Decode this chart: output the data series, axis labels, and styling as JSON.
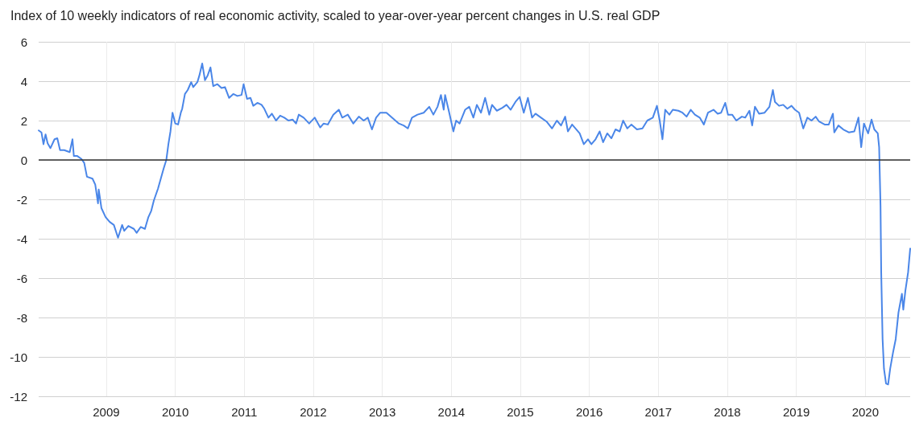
{
  "chart_data": {
    "type": "line",
    "title": "Index of 10 weekly indicators of real economic activity, scaled to year-over-year percent changes in U.S. real GDP",
    "x": [
      2008.02,
      2008.06,
      2008.09,
      2008.12,
      2008.15,
      2008.19,
      2008.25,
      2008.29,
      2008.33,
      2008.39,
      2008.47,
      2008.51,
      2008.53,
      2008.58,
      2008.64,
      2008.68,
      2008.72,
      2008.8,
      2008.84,
      2008.88,
      2008.89,
      2008.93,
      2008.99,
      2009.05,
      2009.11,
      2009.17,
      2009.23,
      2009.26,
      2009.32,
      2009.4,
      2009.44,
      2009.5,
      2009.56,
      2009.61,
      2009.65,
      2009.69,
      2009.75,
      2009.79,
      2009.83,
      2009.87,
      2009.9,
      2009.93,
      2009.96,
      2010.0,
      2010.04,
      2010.08,
      2010.1,
      2010.14,
      2010.18,
      2010.23,
      2010.26,
      2010.32,
      2010.35,
      2010.39,
      2010.43,
      2010.47,
      2010.51,
      2010.55,
      2010.61,
      2010.67,
      2010.72,
      2010.78,
      2010.84,
      2010.9,
      2010.96,
      2010.99,
      2011.04,
      2011.09,
      2011.13,
      2011.19,
      2011.25,
      2011.29,
      2011.35,
      2011.4,
      2011.46,
      2011.52,
      2011.58,
      2011.64,
      2011.7,
      2011.75,
      2011.79,
      2011.86,
      2011.94,
      2012.02,
      2012.1,
      2012.15,
      2012.21,
      2012.29,
      2012.37,
      2012.42,
      2012.5,
      2012.58,
      2012.66,
      2012.73,
      2012.79,
      2012.85,
      2012.91,
      2012.97,
      2013.06,
      2013.14,
      2013.24,
      2013.31,
      2013.37,
      2013.43,
      2013.51,
      2013.6,
      2013.68,
      2013.74,
      2013.8,
      2013.85,
      2013.89,
      2013.91,
      2013.97,
      2014.03,
      2014.07,
      2014.12,
      2014.2,
      2014.26,
      2014.32,
      2014.37,
      2014.43,
      2014.49,
      2014.55,
      2014.59,
      2014.66,
      2014.74,
      2014.8,
      2014.86,
      2014.93,
      2014.99,
      2015.05,
      2015.11,
      2015.17,
      2015.22,
      2015.3,
      2015.38,
      2015.46,
      2015.53,
      2015.59,
      2015.65,
      2015.69,
      2015.75,
      2015.8,
      2015.86,
      2015.92,
      2015.98,
      2016.03,
      2016.09,
      2016.15,
      2016.2,
      2016.26,
      2016.32,
      2016.38,
      2016.44,
      2016.49,
      2016.55,
      2016.61,
      2016.69,
      2016.77,
      2016.84,
      2016.92,
      2016.98,
      2017.02,
      2017.06,
      2017.1,
      2017.16,
      2017.21,
      2017.29,
      2017.35,
      2017.41,
      2017.47,
      2017.53,
      2017.6,
      2017.66,
      2017.72,
      2017.8,
      2017.86,
      2017.91,
      2017.97,
      2018.01,
      2018.07,
      2018.13,
      2018.21,
      2018.26,
      2018.32,
      2018.36,
      2018.4,
      2018.46,
      2018.54,
      2018.61,
      2018.66,
      2018.69,
      2018.75,
      2018.81,
      2018.87,
      2018.93,
      2018.98,
      2019.04,
      2019.1,
      2019.16,
      2019.22,
      2019.28,
      2019.33,
      2019.41,
      2019.47,
      2019.53,
      2019.55,
      2019.61,
      2019.68,
      2019.76,
      2019.84,
      2019.9,
      2019.94,
      2019.98,
      2020.04,
      2020.09,
      2020.13,
      2020.18,
      2020.2,
      2020.22,
      2020.23,
      2020.25,
      2020.27,
      2020.3,
      2020.33,
      2020.36,
      2020.4,
      2020.44,
      2020.48,
      2020.53,
      2020.55,
      2020.58,
      2020.62,
      2020.65
    ],
    "series": [
      {
        "color": "#4a86e8",
        "values": [
          1.5,
          1.4,
          0.8,
          1.3,
          0.85,
          0.6,
          1.05,
          1.1,
          0.5,
          0.5,
          0.4,
          1.05,
          0.2,
          0.2,
          0.05,
          -0.15,
          -0.85,
          -0.95,
          -1.25,
          -2.2,
          -1.5,
          -2.45,
          -2.9,
          -3.15,
          -3.3,
          -3.95,
          -3.3,
          -3.6,
          -3.35,
          -3.5,
          -3.7,
          -3.4,
          -3.5,
          -2.9,
          -2.6,
          -2.05,
          -1.45,
          -0.95,
          -0.45,
          0,
          0.8,
          1.45,
          2.4,
          1.85,
          1.8,
          2.4,
          2.6,
          3.35,
          3.55,
          3.95,
          3.7,
          3.95,
          4.3,
          4.9,
          4.05,
          4.3,
          4.7,
          3.75,
          3.85,
          3.65,
          3.7,
          3.15,
          3.35,
          3.25,
          3.3,
          3.85,
          3.1,
          3.15,
          2.75,
          2.9,
          2.8,
          2.6,
          2.15,
          2.35,
          2.0,
          2.25,
          2.15,
          2.0,
          2.05,
          1.85,
          2.3,
          2.15,
          1.85,
          2.15,
          1.65,
          1.85,
          1.8,
          2.3,
          2.55,
          2.15,
          2.3,
          1.85,
          2.2,
          2.0,
          2.15,
          1.55,
          2.15,
          2.4,
          2.4,
          2.15,
          1.85,
          1.75,
          1.6,
          2.15,
          2.3,
          2.4,
          2.7,
          2.3,
          2.7,
          3.3,
          2.55,
          3.3,
          2.4,
          1.45,
          2.0,
          1.85,
          2.55,
          2.7,
          2.15,
          2.8,
          2.4,
          3.15,
          2.3,
          2.8,
          2.5,
          2.65,
          2.8,
          2.55,
          2.95,
          3.2,
          2.4,
          3.15,
          2.15,
          2.35,
          2.15,
          1.95,
          1.6,
          2.0,
          1.75,
          2.2,
          1.45,
          1.8,
          1.6,
          1.35,
          0.8,
          1.05,
          0.8,
          1.05,
          1.45,
          0.9,
          1.35,
          1.1,
          1.55,
          1.45,
          2.0,
          1.6,
          1.8,
          1.55,
          1.6,
          2.0,
          2.15,
          2.75,
          2.0,
          1.05,
          2.55,
          2.3,
          2.55,
          2.5,
          2.4,
          2.2,
          2.55,
          2.3,
          2.15,
          1.8,
          2.4,
          2.55,
          2.35,
          2.4,
          2.9,
          2.3,
          2.3,
          2.0,
          2.2,
          2.15,
          2.5,
          1.75,
          2.7,
          2.35,
          2.4,
          2.7,
          3.55,
          2.95,
          2.75,
          2.8,
          2.6,
          2.75,
          2.55,
          2.4,
          1.6,
          2.15,
          2.0,
          2.2,
          1.95,
          1.8,
          1.8,
          2.35,
          1.4,
          1.75,
          1.55,
          1.4,
          1.45,
          2.15,
          0.65,
          1.85,
          1.35,
          2.05,
          1.55,
          1.35,
          0.65,
          -2.35,
          -5.7,
          -9.1,
          -10.6,
          -11.35,
          -11.4,
          -10.6,
          -9.8,
          -9.1,
          -7.75,
          -6.8,
          -7.6,
          -6.65,
          -5.7,
          -4.5
        ]
      }
    ],
    "xlim": [
      2008.02,
      2020.65
    ],
    "xticks": [
      2009,
      2010,
      2011,
      2012,
      2013,
      2014,
      2015,
      2016,
      2017,
      2018,
      2019,
      2020
    ],
    "ylim": [
      -12,
      6
    ],
    "yticks": [
      -12,
      -10,
      -8,
      -6,
      -4,
      -2,
      0,
      2,
      4,
      6
    ],
    "ref_lines": [
      {
        "axis": "y",
        "value": 0,
        "color": "#333333"
      }
    ],
    "grid": true,
    "marker": "none",
    "line_style": "solid"
  }
}
